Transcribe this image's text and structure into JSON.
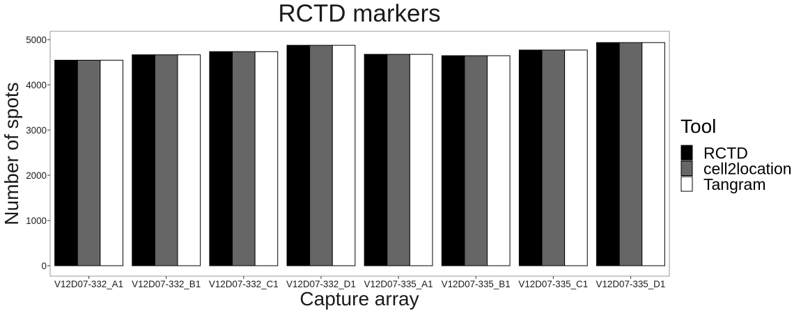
{
  "chart_data": {
    "type": "bar",
    "title": "RCTD markers",
    "xlabel": "Capture array",
    "ylabel": "Number of spots",
    "ylim": [
      0,
      5000
    ],
    "yticks": [
      0,
      1000,
      2000,
      3000,
      4000,
      5000
    ],
    "grid": false,
    "legend_title": "Tool",
    "legend_position": "right",
    "categories": [
      "V12D07-332_A1",
      "V12D07-332_B1",
      "V12D07-332_C1",
      "V12D07-332_D1",
      "V12D07-335_A1",
      "V12D07-335_B1",
      "V12D07-335_C1",
      "V12D07-335_D1"
    ],
    "series": [
      {
        "name": "RCTD",
        "color": "#000000",
        "values": [
          4545,
          4665,
          4735,
          4875,
          4675,
          4645,
          4770,
          4935
        ]
      },
      {
        "name": "cell2location",
        "color": "#666666",
        "values": [
          4545,
          4665,
          4735,
          4875,
          4675,
          4645,
          4770,
          4935
        ]
      },
      {
        "name": "Tangram",
        "color": "#ffffff",
        "values": [
          4545,
          4665,
          4735,
          4875,
          4675,
          4645,
          4770,
          4935
        ]
      }
    ]
  }
}
